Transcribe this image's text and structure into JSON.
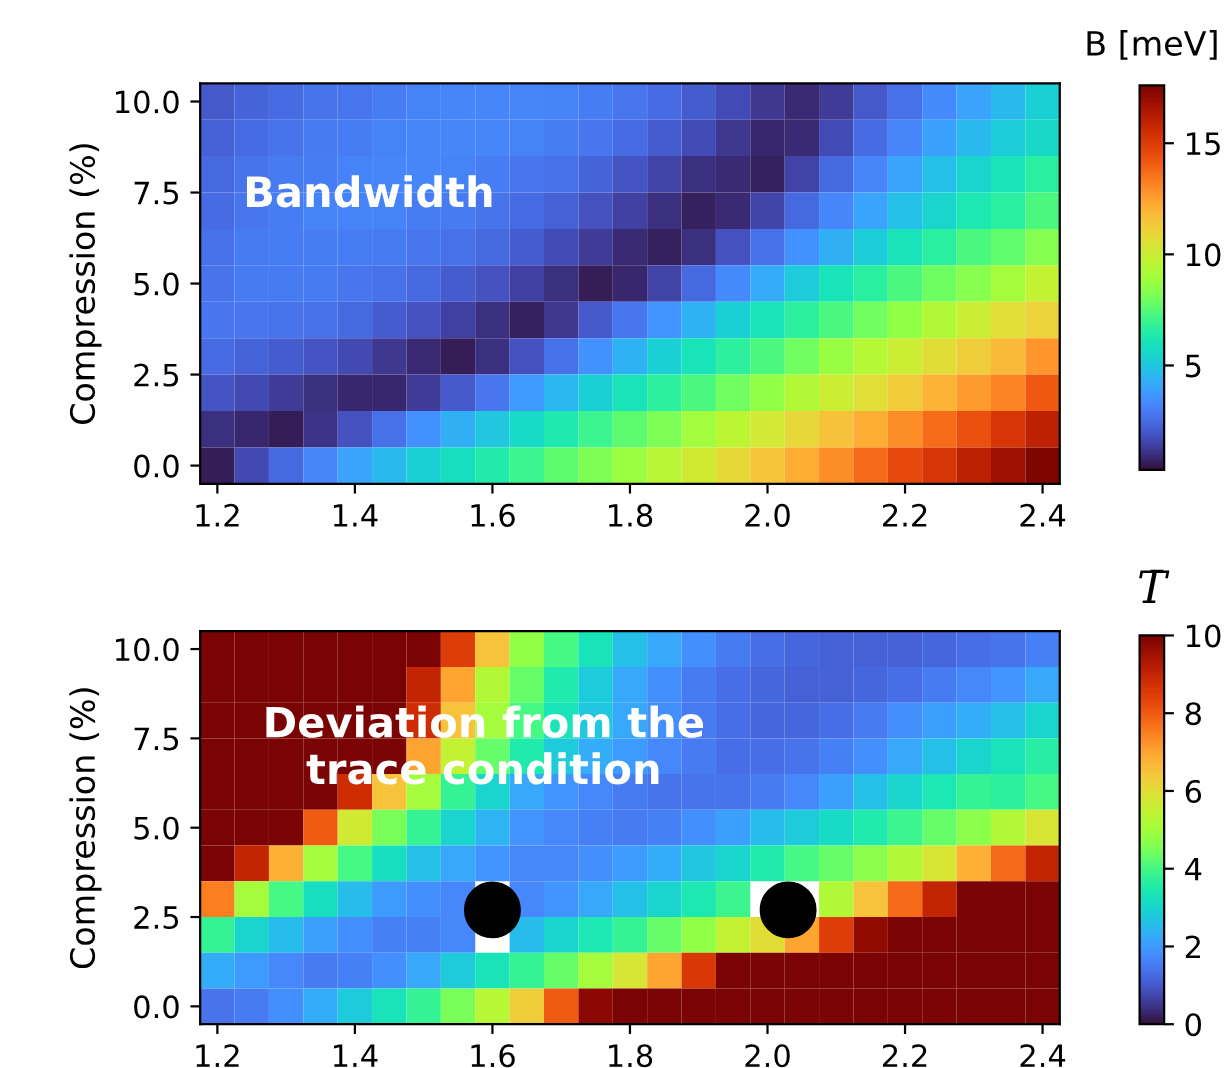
{
  "chart_data": [
    {
      "type": "heatmap",
      "ylabel": "Compression (%)",
      "clabel": "B [meV]",
      "annotations": [
        "Bandwidth"
      ],
      "x": [
        1.2,
        1.25,
        1.3,
        1.35,
        1.4,
        1.45,
        1.5,
        1.55,
        1.6,
        1.65,
        1.7,
        1.75,
        1.8,
        1.85,
        1.9,
        1.95,
        2.0,
        2.05,
        2.1,
        2.15,
        2.2,
        2.25,
        2.3,
        2.35,
        2.4
      ],
      "y": [
        10,
        9,
        8,
        7,
        6,
        5,
        4,
        3,
        2,
        1,
        0
      ],
      "xlim": [
        1.175,
        2.425
      ],
      "xticks": [
        {
          "value": 1.2,
          "label": "1.2"
        },
        {
          "value": 1.4,
          "label": "1.4"
        },
        {
          "value": 1.6,
          "label": "1.6"
        },
        {
          "value": 1.8,
          "label": "1.8"
        },
        {
          "value": 2.0,
          "label": "2.0"
        },
        {
          "value": 2.2,
          "label": "2.2"
        },
        {
          "value": 2.4,
          "label": "2.4"
        }
      ],
      "ylim": [
        -0.5,
        10.5
      ],
      "yticks": [
        {
          "value": 0,
          "label": "0.0"
        },
        {
          "value": 2.5,
          "label": "2.5"
        },
        {
          "value": 5,
          "label": "5.0"
        },
        {
          "value": 7.5,
          "label": "7.5"
        },
        {
          "value": 10,
          "label": "10.0"
        }
      ],
      "clim": [
        0.3,
        17.6
      ],
      "cticks": [
        5,
        10,
        15
      ],
      "cells": [
        [
          2.0,
          2.3,
          2.5,
          2.7,
          2.8,
          3.0,
          3.1,
          3.2,
          3.2,
          3.2,
          3.1,
          3.0,
          2.8,
          2.5,
          2.1,
          1.7,
          1.2,
          0.9,
          1.3,
          2.0,
          2.6,
          3.3,
          4.0,
          4.6,
          5.3
        ],
        [
          2.2,
          2.5,
          2.7,
          2.9,
          3.0,
          3.1,
          3.2,
          3.2,
          3.2,
          3.1,
          3.0,
          2.8,
          2.5,
          2.1,
          1.7,
          1.2,
          0.8,
          0.9,
          1.7,
          2.5,
          3.2,
          3.9,
          4.6,
          5.2,
          5.6
        ],
        [
          2.4,
          2.7,
          2.9,
          3.0,
          3.1,
          3.2,
          3.2,
          3.1,
          3.0,
          2.8,
          2.6,
          2.3,
          1.9,
          1.5,
          1.0,
          0.9,
          0.7,
          1.5,
          2.4,
          3.2,
          4.0,
          4.8,
          5.5,
          6.0,
          6.6
        ],
        [
          2.5,
          2.8,
          3.0,
          3.1,
          3.1,
          3.1,
          3.0,
          2.9,
          2.7,
          2.5,
          2.2,
          1.8,
          1.4,
          1.0,
          0.7,
          0.9,
          1.5,
          2.4,
          3.2,
          4.0,
          4.8,
          5.5,
          6.2,
          6.6,
          7.3
        ],
        [
          2.6,
          2.9,
          3.0,
          3.0,
          3.0,
          2.9,
          2.8,
          2.6,
          2.4,
          2.1,
          1.7,
          1.3,
          0.9,
          0.7,
          1.0,
          1.8,
          2.6,
          3.5,
          4.3,
          5.2,
          6.0,
          6.6,
          7.3,
          7.7,
          8.3
        ],
        [
          2.7,
          2.9,
          2.9,
          2.9,
          2.8,
          2.6,
          2.4,
          2.1,
          1.8,
          1.4,
          1.0,
          0.6,
          0.8,
          1.5,
          2.4,
          3.3,
          4.2,
          5.1,
          6.0,
          6.6,
          7.3,
          7.9,
          8.4,
          9.0,
          9.8
        ],
        [
          2.8,
          2.8,
          2.7,
          2.6,
          2.4,
          2.1,
          1.8,
          1.4,
          1.0,
          0.7,
          1.2,
          2.0,
          2.8,
          3.6,
          4.4,
          5.3,
          6.0,
          6.7,
          7.3,
          8.0,
          8.6,
          9.3,
          10.0,
          10.6,
          11.0
        ],
        [
          2.5,
          2.3,
          2.1,
          1.9,
          1.6,
          1.2,
          0.9,
          0.6,
          1.0,
          1.8,
          2.6,
          3.5,
          4.4,
          5.3,
          6.0,
          6.7,
          7.3,
          8.0,
          8.7,
          9.4,
          10.0,
          10.7,
          11.2,
          11.8,
          12.8
        ],
        [
          1.9,
          1.6,
          1.3,
          1.0,
          0.8,
          0.8,
          1.3,
          2.0,
          2.8,
          3.7,
          4.5,
          5.3,
          6.0,
          6.7,
          7.3,
          8.0,
          8.6,
          9.3,
          10.0,
          10.6,
          11.3,
          12.0,
          12.6,
          13.2,
          14.2
        ],
        [
          1.0,
          0.8,
          0.6,
          1.1,
          1.8,
          2.6,
          3.5,
          4.3,
          5.0,
          5.7,
          6.3,
          7.0,
          7.6,
          8.2,
          8.9,
          9.6,
          10.2,
          10.9,
          11.6,
          12.2,
          13.0,
          13.7,
          14.4,
          15.3,
          16.0
        ],
        [
          0.6,
          1.6,
          2.4,
          3.2,
          4.0,
          4.6,
          5.3,
          5.8,
          6.4,
          7.0,
          7.6,
          8.2,
          8.8,
          9.5,
          10.1,
          10.8,
          11.5,
          12.2,
          13.0,
          13.8,
          14.6,
          15.3,
          16.1,
          16.8,
          17.5
        ]
      ]
    },
    {
      "type": "heatmap",
      "ylabel": "Compression (%)",
      "clabel": "T̄",
      "annotations": [
        "Deviation from the\ntrace condition"
      ],
      "x": [
        1.2,
        1.25,
        1.3,
        1.35,
        1.4,
        1.45,
        1.5,
        1.55,
        1.6,
        1.65,
        1.7,
        1.75,
        1.8,
        1.85,
        1.9,
        1.95,
        2.0,
        2.05,
        2.1,
        2.15,
        2.2,
        2.25,
        2.3,
        2.35,
        2.4
      ],
      "y": [
        10,
        9,
        8,
        7,
        6,
        5,
        4,
        3,
        2,
        1,
        0
      ],
      "xlim": [
        1.175,
        2.425
      ],
      "xticks": [
        {
          "value": 1.2,
          "label": "1.2"
        },
        {
          "value": 1.4,
          "label": "1.4"
        },
        {
          "value": 1.6,
          "label": "1.6"
        },
        {
          "value": 1.8,
          "label": "1.8"
        },
        {
          "value": 2.0,
          "label": "2.0"
        },
        {
          "value": 2.2,
          "label": "2.2"
        },
        {
          "value": 2.4,
          "label": "2.4"
        }
      ],
      "ylim": [
        -0.5,
        10.5
      ],
      "yticks": [
        {
          "value": 0,
          "label": "0.0"
        },
        {
          "value": 2.5,
          "label": "2.5"
        },
        {
          "value": 5,
          "label": "5.0"
        },
        {
          "value": 7.5,
          "label": "7.5"
        },
        {
          "value": 10,
          "label": "10.0"
        }
      ],
      "clim": [
        0,
        10
      ],
      "cticks": [
        0,
        2,
        4,
        6,
        8,
        10
      ],
      "series": [
        {
          "type": "scatter",
          "color": "#000000",
          "x": [
            1.6,
            2.03
          ],
          "values": [
            2.7,
            2.7
          ]
        }
      ],
      "cells": [
        [
          10,
          10,
          10,
          10,
          10,
          10,
          10,
          8.5,
          6.5,
          4.8,
          4.0,
          3.3,
          2.6,
          2.2,
          1.8,
          1.5,
          1.3,
          1.2,
          1.1,
          1.1,
          1.1,
          1.2,
          1.3,
          1.4,
          1.6
        ],
        [
          10,
          10,
          10,
          10,
          10,
          10,
          9.0,
          7.0,
          5.2,
          4.3,
          3.5,
          2.8,
          2.2,
          1.8,
          1.5,
          1.3,
          1.2,
          1.1,
          1.1,
          1.2,
          1.3,
          1.5,
          1.7,
          1.9,
          2.2
        ],
        [
          10,
          10,
          10,
          10,
          10,
          10,
          8.8,
          6.5,
          5.0,
          4.0,
          3.3,
          2.7,
          2.2,
          1.8,
          1.5,
          1.3,
          1.2,
          1.2,
          1.3,
          1.5,
          1.8,
          2.1,
          2.3,
          2.6,
          3.0
        ],
        [
          10,
          10,
          10,
          10,
          10,
          10,
          7.0,
          5.5,
          4.3,
          3.5,
          2.8,
          2.3,
          2.0,
          1.7,
          1.5,
          1.3,
          1.3,
          1.4,
          1.6,
          1.8,
          2.2,
          2.6,
          3.0,
          3.3,
          3.6
        ],
        [
          10,
          10,
          10,
          10,
          8.8,
          6.5,
          5.0,
          3.8,
          3.0,
          2.2,
          1.9,
          1.7,
          1.5,
          1.4,
          1.4,
          1.4,
          1.5,
          1.7,
          2.1,
          2.6,
          3.0,
          3.4,
          3.8,
          3.7,
          4.0
        ],
        [
          10,
          10,
          10,
          8.0,
          5.7,
          4.5,
          3.8,
          3.0,
          2.4,
          1.9,
          1.7,
          1.6,
          1.5,
          1.6,
          1.8,
          2.1,
          2.5,
          2.8,
          3.1,
          3.5,
          3.9,
          4.3,
          4.7,
          5.2,
          5.8
        ],
        [
          10,
          9.0,
          6.8,
          5.0,
          4.0,
          3.2,
          2.6,
          2.2,
          1.9,
          1.7,
          1.7,
          1.8,
          2.0,
          2.3,
          2.7,
          3.0,
          3.5,
          4.0,
          4.3,
          4.7,
          5.2,
          5.8,
          6.8,
          7.8,
          9.0
        ],
        [
          7.5,
          5.0,
          4.0,
          3.2,
          2.5,
          2.0,
          1.8,
          1.7,
          null,
          1.7,
          1.9,
          2.2,
          2.6,
          3.0,
          3.4,
          3.9,
          null,
          null,
          5.2,
          6.5,
          7.8,
          9.0,
          10,
          10,
          10
        ],
        [
          3.8,
          3.0,
          2.5,
          2.1,
          1.8,
          1.6,
          1.6,
          1.7,
          null,
          2.5,
          3.0,
          3.4,
          3.8,
          4.3,
          4.8,
          5.5,
          6.0,
          7.0,
          8.5,
          9.7,
          10,
          10,
          10,
          10,
          10
        ],
        [
          2.3,
          2.0,
          1.7,
          1.5,
          1.6,
          1.8,
          2.2,
          2.8,
          3.3,
          3.8,
          4.3,
          5.0,
          5.8,
          7.0,
          8.6,
          10,
          10,
          10,
          10,
          10,
          10,
          10,
          10,
          10,
          10
        ],
        [
          1.4,
          1.5,
          1.8,
          2.3,
          2.8,
          3.3,
          3.8,
          4.5,
          5.3,
          6.3,
          8.0,
          9.8,
          10,
          10,
          10,
          10,
          10,
          10,
          10,
          10,
          10,
          10,
          10,
          10,
          10
        ]
      ]
    }
  ]
}
